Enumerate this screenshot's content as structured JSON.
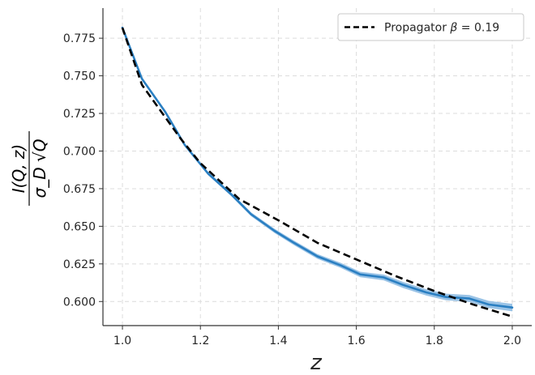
{
  "chart_data": {
    "type": "line",
    "title": "",
    "xlabel": "z",
    "ylabel": {
      "numerator": "I(Q, z)",
      "denominator": "σ_D √Q"
    },
    "xlim": [
      0.95,
      2.05
    ],
    "ylim": [
      0.584,
      0.795
    ],
    "xticks": [
      1.0,
      1.2,
      1.4,
      1.6,
      1.8,
      2.0
    ],
    "xtick_labels": [
      "1.0",
      "1.2",
      "1.4",
      "1.6",
      "1.8",
      "2.0"
    ],
    "yticks": [
      0.6,
      0.625,
      0.65,
      0.675,
      0.7,
      0.725,
      0.75,
      0.775
    ],
    "ytick_labels": [
      "0.600",
      "0.625",
      "0.650",
      "0.675",
      "0.700",
      "0.725",
      "0.750",
      "0.775"
    ],
    "grid": true,
    "legend_position": "top-right",
    "legend": {
      "label_prefix": "Propagator ",
      "label_symbol": "β",
      "label_suffix": " = 0.19"
    },
    "colors": {
      "data_line": "#2a7fc2",
      "data_band": "#8fbde3",
      "model_line": "#000000",
      "grid": "#dcdcdc",
      "axis": "#333333"
    },
    "series": [
      {
        "role": "data",
        "style": "solid",
        "has_uncertainty_band": true,
        "x": [
          1.0,
          1.05,
          1.11,
          1.16,
          1.22,
          1.28,
          1.33,
          1.39,
          1.44,
          1.5,
          1.56,
          1.61,
          1.67,
          1.72,
          1.78,
          1.83,
          1.89,
          1.94,
          2.0
        ],
        "y": [
          0.782,
          0.748,
          0.726,
          0.704,
          0.685,
          0.671,
          0.658,
          0.647,
          0.639,
          0.63,
          0.624,
          0.618,
          0.616,
          0.611,
          0.606,
          0.603,
          0.602,
          0.598,
          0.596
        ],
        "band_halfwidth": [
          0.0008,
          0.0009,
          0.001,
          0.001,
          0.0011,
          0.0012,
          0.0013,
          0.0014,
          0.0015,
          0.0016,
          0.0017,
          0.0018,
          0.0019,
          0.002,
          0.0021,
          0.0022,
          0.0023,
          0.0024,
          0.0025
        ]
      },
      {
        "name": "Propagator β = 0.19",
        "role": "model",
        "style": "dashed",
        "x": [
          1.0,
          1.05,
          1.1,
          1.15,
          1.2,
          1.3,
          1.4,
          1.5,
          1.6,
          1.7,
          1.8,
          1.9,
          2.0
        ],
        "y": [
          0.782,
          0.744,
          0.726,
          0.708,
          0.692,
          0.668,
          0.654,
          0.639,
          0.628,
          0.617,
          0.607,
          0.598,
          0.59
        ]
      }
    ]
  }
}
